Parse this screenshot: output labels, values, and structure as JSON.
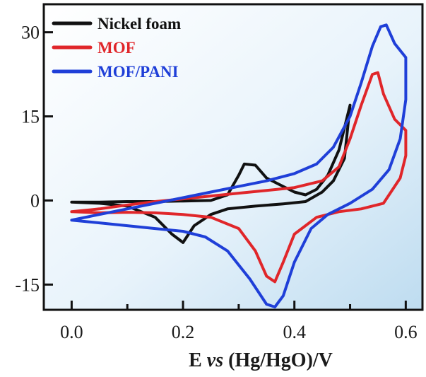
{
  "chart_data": {
    "type": "line",
    "title": "",
    "xlabel_parts": [
      "E ",
      "vs",
      " (Hg/HgO)/V"
    ],
    "ylabel": "",
    "xlim": [
      -0.05,
      0.63
    ],
    "ylim": [
      -19.5,
      35
    ],
    "x_ticks": [
      0.0,
      0.2,
      0.4,
      0.6
    ],
    "x_tick_labels": [
      "0.0",
      "0.2",
      "0.4",
      "0.6"
    ],
    "x_minor_ticks": [
      0.1,
      0.3,
      0.5
    ],
    "y_ticks": [
      30,
      15,
      0,
      -15
    ],
    "y_tick_labels": [
      "30",
      "15",
      "0",
      "-15"
    ],
    "grid": false,
    "legend_position": "top-left",
    "series": [
      {
        "name": "Nickel foam",
        "color": "#111111",
        "points": [
          [
            0.0,
            -0.3
          ],
          [
            0.05,
            -0.3
          ],
          [
            0.1,
            -0.2
          ],
          [
            0.15,
            -0.2
          ],
          [
            0.2,
            -0.1
          ],
          [
            0.25,
            0.0
          ],
          [
            0.28,
            1.0
          ],
          [
            0.3,
            4.5
          ],
          [
            0.31,
            6.5
          ],
          [
            0.33,
            6.3
          ],
          [
            0.35,
            4.0
          ],
          [
            0.38,
            2.5
          ],
          [
            0.4,
            1.5
          ],
          [
            0.42,
            1.0
          ],
          [
            0.44,
            2.0
          ],
          [
            0.46,
            4.5
          ],
          [
            0.48,
            9.0
          ],
          [
            0.5,
            17.0
          ],
          [
            0.49,
            7.5
          ],
          [
            0.47,
            3.5
          ],
          [
            0.45,
            1.5
          ],
          [
            0.42,
            -0.2
          ],
          [
            0.38,
            -0.6
          ],
          [
            0.33,
            -1.0
          ],
          [
            0.28,
            -1.5
          ],
          [
            0.25,
            -2.5
          ],
          [
            0.22,
            -4.5
          ],
          [
            0.2,
            -7.5
          ],
          [
            0.18,
            -6.0
          ],
          [
            0.15,
            -3.0
          ],
          [
            0.1,
            -1.0
          ],
          [
            0.05,
            -0.5
          ],
          [
            0.0,
            -0.3
          ]
        ]
      },
      {
        "name": "MOF",
        "color": "#e0262a",
        "points": [
          [
            0.0,
            -2.0
          ],
          [
            0.05,
            -1.5
          ],
          [
            0.1,
            -0.8
          ],
          [
            0.15,
            -0.2
          ],
          [
            0.2,
            0.3
          ],
          [
            0.25,
            0.8
          ],
          [
            0.3,
            1.3
          ],
          [
            0.35,
            1.8
          ],
          [
            0.4,
            2.3
          ],
          [
            0.45,
            3.5
          ],
          [
            0.48,
            6.0
          ],
          [
            0.5,
            11.0
          ],
          [
            0.52,
            17.0
          ],
          [
            0.54,
            22.5
          ],
          [
            0.55,
            22.8
          ],
          [
            0.56,
            19.0
          ],
          [
            0.58,
            14.5
          ],
          [
            0.6,
            12.5
          ],
          [
            0.6,
            8.0
          ],
          [
            0.59,
            4.0
          ],
          [
            0.56,
            -0.5
          ],
          [
            0.52,
            -1.5
          ],
          [
            0.48,
            -2.0
          ],
          [
            0.44,
            -3.0
          ],
          [
            0.4,
            -6.0
          ],
          [
            0.38,
            -11.0
          ],
          [
            0.365,
            -14.5
          ],
          [
            0.35,
            -13.5
          ],
          [
            0.33,
            -9.0
          ],
          [
            0.3,
            -5.0
          ],
          [
            0.25,
            -3.0
          ],
          [
            0.2,
            -2.5
          ],
          [
            0.15,
            -2.2
          ],
          [
            0.1,
            -2.1
          ],
          [
            0.05,
            -2.2
          ],
          [
            0.0,
            -2.0
          ]
        ]
      },
      {
        "name": "MOF/PANI",
        "color": "#1f3fd8",
        "points": [
          [
            0.0,
            -3.5
          ],
          [
            0.05,
            -2.5
          ],
          [
            0.1,
            -1.5
          ],
          [
            0.15,
            -0.5
          ],
          [
            0.2,
            0.5
          ],
          [
            0.25,
            1.5
          ],
          [
            0.3,
            2.5
          ],
          [
            0.35,
            3.5
          ],
          [
            0.4,
            4.8
          ],
          [
            0.44,
            6.5
          ],
          [
            0.47,
            9.5
          ],
          [
            0.5,
            15.0
          ],
          [
            0.52,
            21.0
          ],
          [
            0.54,
            27.5
          ],
          [
            0.555,
            31.0
          ],
          [
            0.565,
            31.3
          ],
          [
            0.58,
            28.0
          ],
          [
            0.6,
            25.5
          ],
          [
            0.6,
            18.0
          ],
          [
            0.59,
            11.0
          ],
          [
            0.57,
            5.5
          ],
          [
            0.54,
            2.0
          ],
          [
            0.5,
            -0.5
          ],
          [
            0.46,
            -2.5
          ],
          [
            0.43,
            -5.0
          ],
          [
            0.4,
            -11.0
          ],
          [
            0.38,
            -17.0
          ],
          [
            0.365,
            -19.0
          ],
          [
            0.35,
            -18.5
          ],
          [
            0.32,
            -14.0
          ],
          [
            0.28,
            -9.0
          ],
          [
            0.24,
            -6.5
          ],
          [
            0.2,
            -5.5
          ],
          [
            0.15,
            -5.0
          ],
          [
            0.1,
            -4.5
          ],
          [
            0.05,
            -4.0
          ],
          [
            0.0,
            -3.5
          ]
        ]
      }
    ]
  }
}
